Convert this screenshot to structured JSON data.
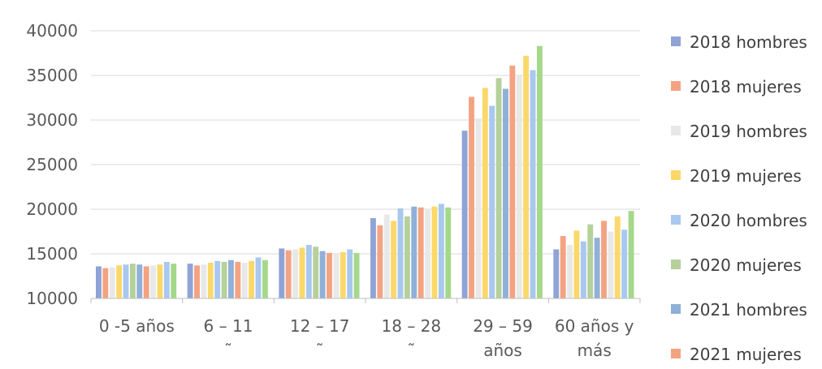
{
  "chart_data": {
    "type": "bar",
    "categories": [
      [
        "0 -5 años"
      ],
      [
        "6 – 11",
        "˜"
      ],
      [
        "12 – 17",
        "˜"
      ],
      [
        "18 – 28",
        "˜"
      ],
      [
        "29 – 59",
        "años"
      ],
      [
        "60 años y",
        "más"
      ]
    ],
    "ylim": [
      10000,
      40000
    ],
    "yticks": [
      10000,
      15000,
      20000,
      25000,
      30000,
      35000,
      40000
    ],
    "grid": true,
    "legend_position": "right",
    "series": [
      {
        "name": "2018 hombres",
        "color": "#8fa3d6",
        "values": [
          13600,
          13900,
          15600,
          19000,
          28800,
          15500
        ]
      },
      {
        "name": "2018 mujeres",
        "color": "#f4a382",
        "values": [
          13400,
          13700,
          15400,
          18200,
          32600,
          17000
        ]
      },
      {
        "name": "2019 hombres",
        "color": "#e8e8e8",
        "values": [
          13500,
          13800,
          15500,
          19400,
          30200,
          16000
        ]
      },
      {
        "name": "2019 mujeres",
        "color": "#fbd86a",
        "values": [
          13700,
          14000,
          15700,
          18700,
          33600,
          17600
        ]
      },
      {
        "name": "2020 hombres",
        "color": "#a8c8f0",
        "values": [
          13800,
          14200,
          16000,
          20100,
          31600,
          16400
        ]
      },
      {
        "name": "2020 hombres",
        "color": "#b5d19a",
        "values": [
          13900,
          14100,
          15800,
          19200,
          34700,
          18300
        ]
      },
      {
        "name": "2020 mujeres",
        "color": "#8fb0d8",
        "values": [
          13800,
          14300,
          15300,
          20300,
          33500,
          16800
        ]
      },
      {
        "name": "2021 hombres",
        "color": "#f4a382",
        "values": [
          13600,
          14100,
          15100,
          20200,
          36100,
          18700
        ]
      },
      {
        "name": "2021 mujeres",
        "color": "#e8e8e8",
        "values": [
          13700,
          14000,
          15000,
          20000,
          35000,
          17500
        ]
      },
      {
        "name": "2021 mujeres",
        "color": "#fbd86a",
        "values": [
          13800,
          14200,
          15200,
          20300,
          37200,
          19200
        ]
      },
      {
        "name": "",
        "color": "#a8c8f0",
        "values": [
          14100,
          14600,
          15500,
          20600,
          35600,
          17700
        ]
      },
      {
        "name": "",
        "color": "#a5d88a",
        "values": [
          13900,
          14300,
          15100,
          20200,
          38300,
          19800
        ]
      }
    ],
    "legend": [
      "2018 hombres",
      "2018 mujeres",
      "2019 hombres",
      "2019 mujeres",
      "2020 hombres",
      "2020 mujeres",
      "2021 hombres",
      "2021 mujeres"
    ],
    "legend_colors": [
      "#8fa3d6",
      "#f4a382",
      "#e8e8e8",
      "#fbd86a",
      "#a8c8f0",
      "#b5d19a",
      "#8fb0d8",
      "#f4a382"
    ]
  }
}
